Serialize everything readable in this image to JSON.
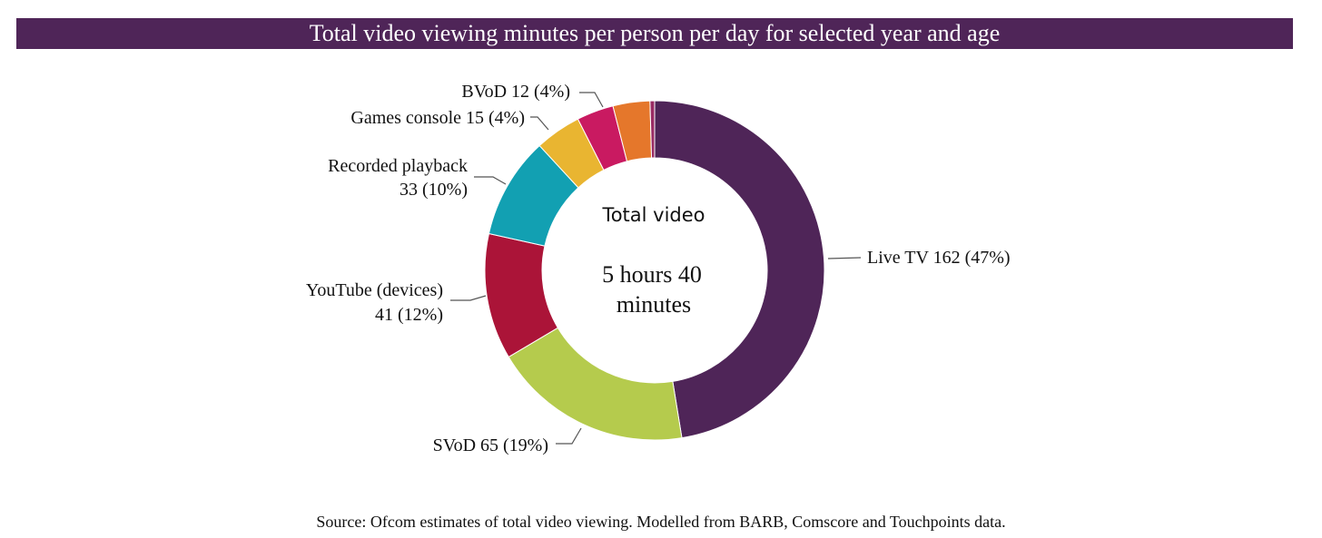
{
  "chart_data": {
    "type": "pie",
    "title": "Total video viewing minutes per person per day for selected year and age",
    "center_title": "Total video",
    "center_value_line1": "5 hours 40",
    "center_value_line2": "minutes",
    "total_minutes": 340,
    "slices": [
      {
        "name": "Live TV",
        "value": 162,
        "label_line1": "Live TV 162 (47%)",
        "label_line2": "",
        "color": "#4f2558"
      },
      {
        "name": "SVoD",
        "value": 65,
        "label_line1": "SVoD 65 (19%)",
        "label_line2": "",
        "color": "#b5cb4d"
      },
      {
        "name": "YouTube (devices)",
        "value": 41,
        "label_line1": "YouTube (devices)",
        "label_line2": "41 (12%)",
        "color": "#ab1438"
      },
      {
        "name": "Recorded playback",
        "value": 33,
        "label_line1": "Recorded playback",
        "label_line2": "33 (10%)",
        "color": "#12a0b2"
      },
      {
        "name": "Games console",
        "value": 15,
        "label_line1": "Games console 15 (4%)",
        "label_line2": "",
        "color": "#e9b531"
      },
      {
        "name": "",
        "value": 12,
        "label_line1": "",
        "label_line2": "",
        "color": "#c91a61"
      },
      {
        "name": "BVoD",
        "value": 12,
        "label_line1": "BVoD 12 (4%)",
        "label_line2": "",
        "color": "#e5772b"
      },
      {
        "name": "",
        "value": 1.5,
        "label_line1": "",
        "label_line2": "",
        "color": "#992b63"
      }
    ]
  },
  "source": "Source: Ofcom estimates of total video viewing. Modelled from BARB, Comscore and Touchpoints data."
}
